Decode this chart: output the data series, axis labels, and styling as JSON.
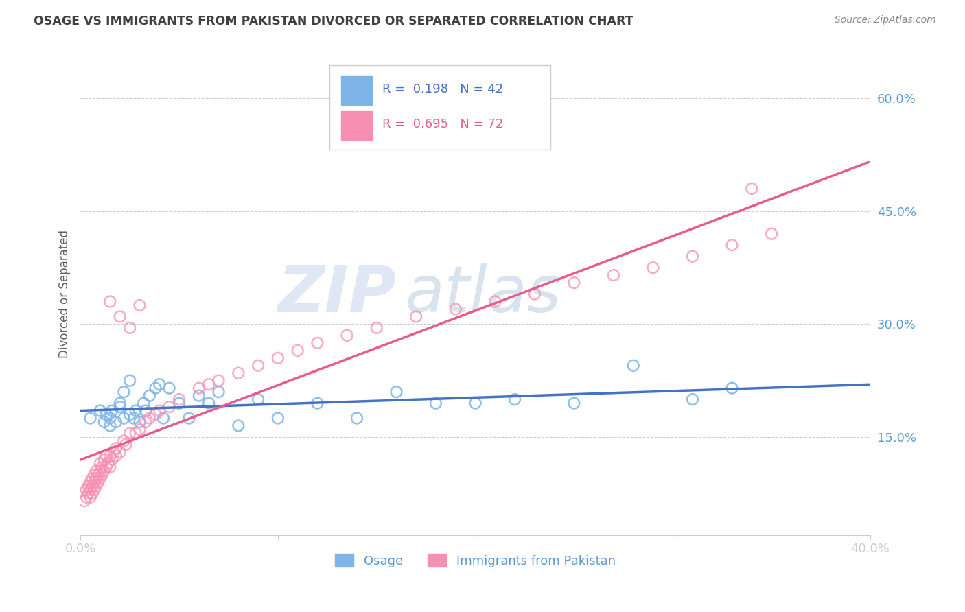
{
  "title": "OSAGE VS IMMIGRANTS FROM PAKISTAN DIVORCED OR SEPARATED CORRELATION CHART",
  "source_text": "Source: ZipAtlas.com",
  "ylabel": "Divorced or Separated",
  "ytick_labels": [
    "15.0%",
    "30.0%",
    "45.0%",
    "60.0%"
  ],
  "ytick_values": [
    0.15,
    0.3,
    0.45,
    0.6
  ],
  "xlim": [
    0.0,
    0.4
  ],
  "ylim": [
    0.02,
    0.66
  ],
  "legend1_R": "0.198",
  "legend1_N": "42",
  "legend2_R": "0.695",
  "legend2_N": "72",
  "blue_scatter_color": "#7EB4E8",
  "pink_scatter_color": "#F78FB3",
  "blue_line_color": "#4472C4",
  "pink_line_color": "#E85C8A",
  "title_color": "#404040",
  "axis_label_color": "#5B9BD5",
  "source_color": "#888888",
  "ylabel_color": "#606060",
  "background_color": "#FFFFFF",
  "grid_color": "#CCCCCC",
  "watermark_zip_color": "#C8D8EC",
  "watermark_atlas_color": "#B8CCE0",
  "osage_points_x": [
    0.005,
    0.01,
    0.012,
    0.013,
    0.015,
    0.015,
    0.016,
    0.018,
    0.02,
    0.02,
    0.022,
    0.022,
    0.025,
    0.025,
    0.027,
    0.028,
    0.03,
    0.032,
    0.033,
    0.035,
    0.038,
    0.04,
    0.042,
    0.045,
    0.05,
    0.055,
    0.06,
    0.065,
    0.07,
    0.08,
    0.09,
    0.1,
    0.12,
    0.14,
    0.16,
    0.18,
    0.2,
    0.22,
    0.25,
    0.28,
    0.31,
    0.33
  ],
  "osage_points_y": [
    0.175,
    0.185,
    0.17,
    0.18,
    0.165,
    0.175,
    0.185,
    0.17,
    0.19,
    0.195,
    0.175,
    0.21,
    0.18,
    0.225,
    0.175,
    0.185,
    0.17,
    0.195,
    0.185,
    0.205,
    0.215,
    0.22,
    0.175,
    0.215,
    0.195,
    0.175,
    0.205,
    0.195,
    0.21,
    0.165,
    0.2,
    0.175,
    0.195,
    0.175,
    0.21,
    0.195,
    0.195,
    0.2,
    0.195,
    0.245,
    0.2,
    0.215
  ],
  "pakistan_points_x": [
    0.002,
    0.003,
    0.003,
    0.004,
    0.004,
    0.005,
    0.005,
    0.005,
    0.006,
    0.006,
    0.006,
    0.007,
    0.007,
    0.007,
    0.008,
    0.008,
    0.008,
    0.009,
    0.009,
    0.01,
    0.01,
    0.01,
    0.011,
    0.011,
    0.012,
    0.012,
    0.013,
    0.013,
    0.014,
    0.015,
    0.015,
    0.016,
    0.017,
    0.018,
    0.018,
    0.02,
    0.022,
    0.023,
    0.025,
    0.028,
    0.03,
    0.033,
    0.035,
    0.038,
    0.04,
    0.045,
    0.05,
    0.06,
    0.065,
    0.07,
    0.08,
    0.09,
    0.1,
    0.11,
    0.12,
    0.135,
    0.15,
    0.17,
    0.19,
    0.21,
    0.23,
    0.25,
    0.27,
    0.29,
    0.31,
    0.33,
    0.35,
    0.02,
    0.025,
    0.03,
    0.34,
    0.015
  ],
  "pakistan_points_y": [
    0.065,
    0.07,
    0.08,
    0.075,
    0.085,
    0.07,
    0.08,
    0.09,
    0.075,
    0.085,
    0.095,
    0.08,
    0.09,
    0.1,
    0.085,
    0.095,
    0.105,
    0.09,
    0.1,
    0.095,
    0.105,
    0.115,
    0.1,
    0.11,
    0.105,
    0.12,
    0.11,
    0.125,
    0.115,
    0.11,
    0.125,
    0.12,
    0.13,
    0.125,
    0.135,
    0.13,
    0.145,
    0.14,
    0.155,
    0.155,
    0.16,
    0.17,
    0.175,
    0.18,
    0.185,
    0.19,
    0.2,
    0.215,
    0.22,
    0.225,
    0.235,
    0.245,
    0.255,
    0.265,
    0.275,
    0.285,
    0.295,
    0.31,
    0.32,
    0.33,
    0.34,
    0.355,
    0.365,
    0.375,
    0.39,
    0.405,
    0.42,
    0.31,
    0.295,
    0.325,
    0.48,
    0.33
  ]
}
